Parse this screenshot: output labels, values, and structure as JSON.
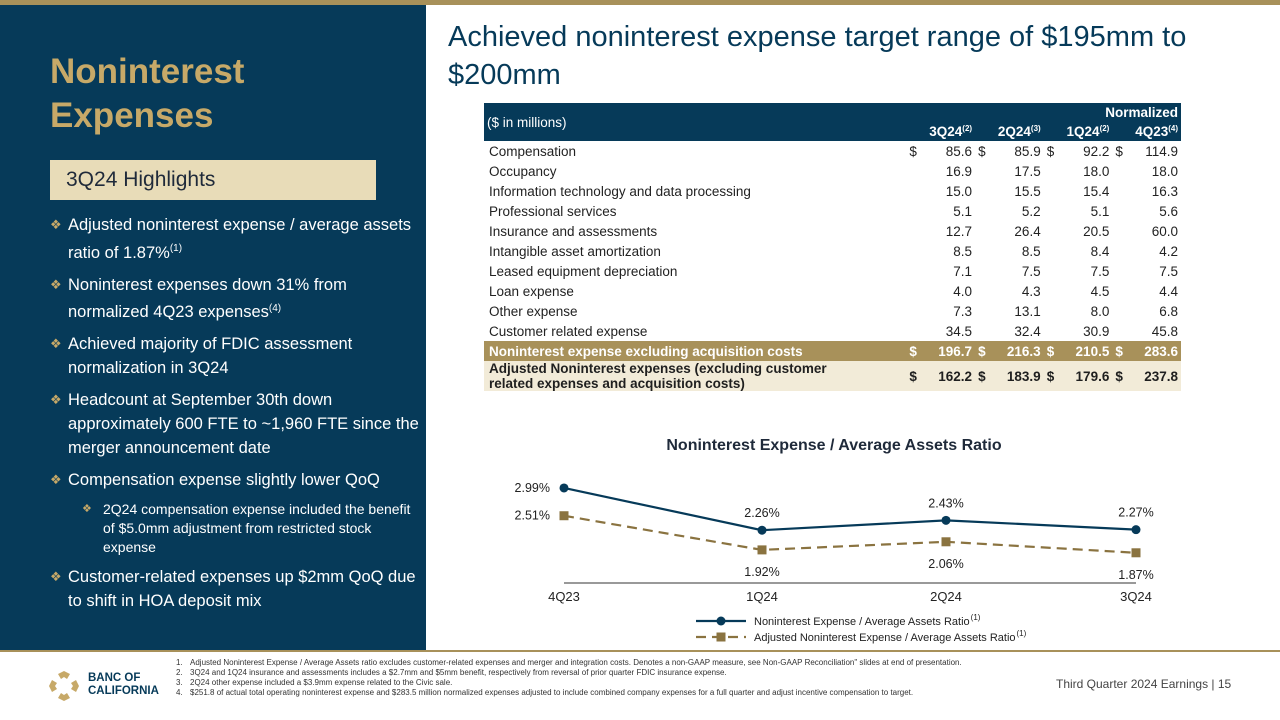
{
  "left": {
    "title_line1": "Noninterest",
    "title_line2": "Expenses",
    "highlights_label": "3Q24 Highlights",
    "bullets": [
      {
        "text": "Adjusted noninterest expense / average assets ratio of 1.87%",
        "sup": "(1)"
      },
      {
        "text": "Noninterest expenses down 31% from normalized 4Q23 expenses",
        "sup": "(4)"
      },
      {
        "text": "Achieved majority of FDIC assessment normalization in 3Q24",
        "sup": ""
      },
      {
        "text": "Headcount at September 30th down approximately 600 FTE to ~1,960 FTE since the merger announcement date",
        "sup": ""
      },
      {
        "text": "Compensation expense slightly lower QoQ",
        "sup": ""
      }
    ],
    "sub_bullet": "2Q24 compensation expense included the benefit of $5.0mm adjustment from restricted stock expense",
    "last_bullet": "Customer-related expenses up $2mm QoQ due to shift in HOA deposit mix"
  },
  "main_title": "Achieved noninterest expense target range of $195mm to $200mm",
  "table": {
    "unit_label": "($ in millions)",
    "normalized_label": "Normalized",
    "columns": [
      {
        "name": "3Q24",
        "sup": "(2)"
      },
      {
        "name": "2Q24",
        "sup": "(3)"
      },
      {
        "name": "1Q24",
        "sup": "(2)"
      },
      {
        "name": "4Q23",
        "sup": "(4)"
      }
    ],
    "currency": "$",
    "rows": [
      {
        "label": "Compensation",
        "values": [
          "85.6",
          "85.9",
          "92.2",
          "114.9"
        ],
        "dollar": true
      },
      {
        "label": "Occupancy",
        "values": [
          "16.9",
          "17.5",
          "18.0",
          "18.0"
        ],
        "dollar": false
      },
      {
        "label": "Information technology and data processing",
        "values": [
          "15.0",
          "15.5",
          "15.4",
          "16.3"
        ],
        "dollar": false
      },
      {
        "label": "Professional services",
        "values": [
          "5.1",
          "5.2",
          "5.1",
          "5.6"
        ],
        "dollar": false
      },
      {
        "label": "Insurance and assessments",
        "values": [
          "12.7",
          "26.4",
          "20.5",
          "60.0"
        ],
        "dollar": false
      },
      {
        "label": "Intangible asset amortization",
        "values": [
          "8.5",
          "8.5",
          "8.4",
          "4.2"
        ],
        "dollar": false
      },
      {
        "label": "Leased equipment depreciation",
        "values": [
          "7.1",
          "7.5",
          "7.5",
          "7.5"
        ],
        "dollar": false
      },
      {
        "label": "Loan expense",
        "values": [
          "4.0",
          "4.3",
          "4.5",
          "4.4"
        ],
        "dollar": false
      },
      {
        "label": "Other expense",
        "values": [
          "7.3",
          "13.1",
          "8.0",
          "6.8"
        ],
        "dollar": false
      },
      {
        "label": "Customer related expense",
        "values": [
          "34.5",
          "32.4",
          "30.9",
          "45.8"
        ],
        "dollar": false
      }
    ],
    "total1": {
      "label": "Noninterest expense excluding acquisition costs",
      "values": [
        "196.7",
        "216.3",
        "210.5",
        "283.6"
      ]
    },
    "total2": {
      "label_line1": "Adjusted Noninterest expenses (excluding customer",
      "label_line2": "related expenses and acquisition costs)",
      "values": [
        "162.2",
        "183.9",
        "179.6",
        "237.8"
      ]
    }
  },
  "chart_data": {
    "type": "line",
    "title": "Noninterest Expense / Average Assets Ratio",
    "categories": [
      "4Q23",
      "1Q24",
      "2Q24",
      "3Q24"
    ],
    "series": [
      {
        "name": "Noninterest Expense / Average Assets Ratio",
        "sup": "(1)",
        "values": [
          2.99,
          2.26,
          2.43,
          2.27
        ],
        "labels": [
          "2.99%",
          "2.26%",
          "2.43%",
          "2.27%"
        ],
        "color": "#063a59",
        "marker": "circle"
      },
      {
        "name": "Adjusted Noninterest Expense / Average Assets Ratio",
        "sup": "(1)",
        "values": [
          2.51,
          1.92,
          2.06,
          1.87
        ],
        "labels": [
          "2.51%",
          "1.92%",
          "2.06%",
          "1.87%"
        ],
        "color": "#8a7340",
        "marker": "square",
        "dash": true
      }
    ],
    "ylim": [
      1.4,
      3.3
    ],
    "legend": "bottom-center"
  },
  "footer": {
    "logo_line1": "BANC OF",
    "logo_line2": "CALIFORNIA",
    "notes": [
      "Adjusted Noninterest Expense / Average Assets ratio excludes customer-related expenses and merger and integration costs. Denotes a non-GAAP measure, see Non-GAAP Reconciliation\" slides at end of presentation.",
      "3Q24 and 1Q24 insurance and assessments includes a $2.7mm and $5mm benefit, respectively from reversal of prior quarter FDIC insurance expense.",
      "2Q24 other expense included a $3.9mm expense related to the Civic sale.",
      "$251.8 of actual total operating noninterest expense and $283.5 million normalized expenses adjusted to include combined company expenses for a full quarter and adjust incentive compensation to target."
    ],
    "page_text": "Third Quarter 2024 Earnings |  15"
  },
  "colors": {
    "navy": "#063a59",
    "gold": "#a8915a",
    "light_gold": "#e8dcb8"
  }
}
